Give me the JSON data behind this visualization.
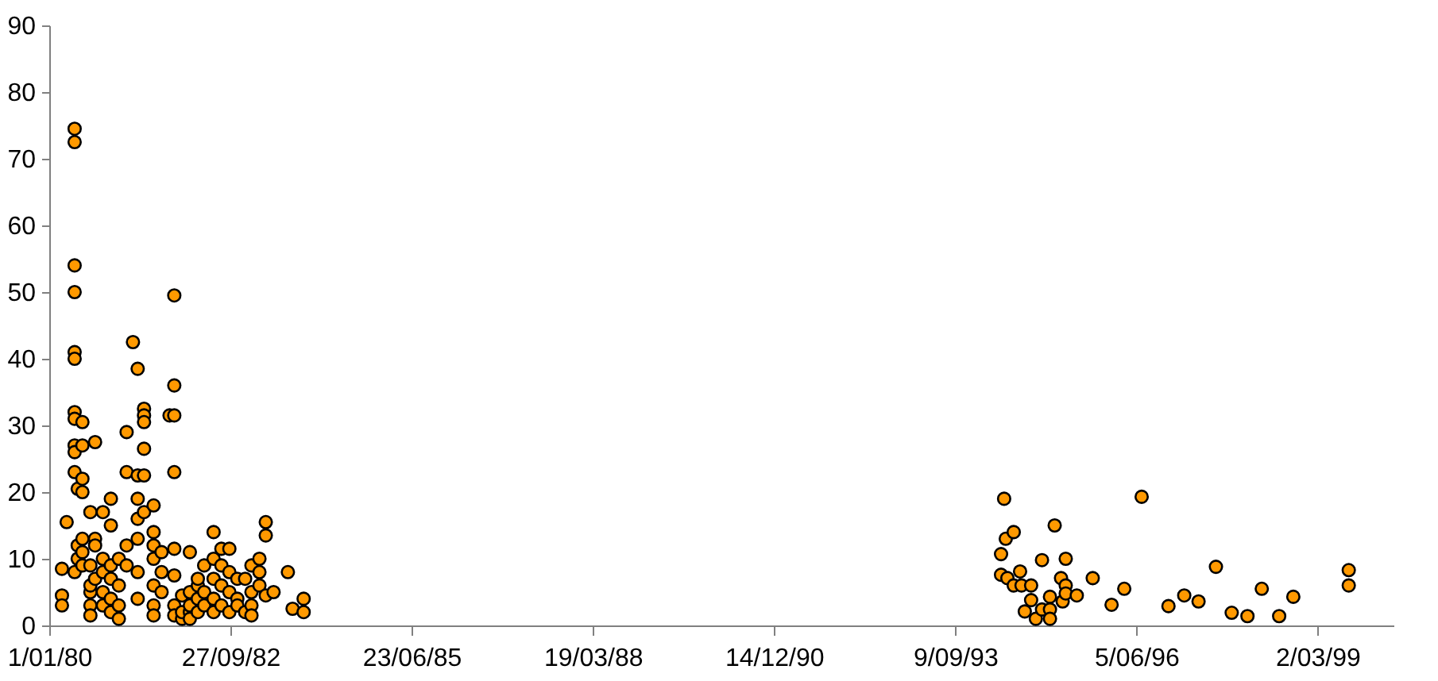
{
  "chart_data": {
    "type": "scatter",
    "marker": "circle",
    "grid": false,
    "xlim": [
      "1980-01-01",
      "2000-04-24"
    ],
    "ylim": [
      0,
      90
    ],
    "xticks": [
      {
        "value": "1980-01-01",
        "label": "1/01/80"
      },
      {
        "value": "1982-09-27",
        "label": "27/09/82"
      },
      {
        "value": "1985-06-23",
        "label": "23/06/85"
      },
      {
        "value": "1988-03-19",
        "label": "19/03/88"
      },
      {
        "value": "1990-12-14",
        "label": "14/12/90"
      },
      {
        "value": "1993-09-09",
        "label": "9/09/93"
      },
      {
        "value": "1996-06-05",
        "label": "5/06/96"
      },
      {
        "value": "1999-03-02",
        "label": "2/03/99"
      }
    ],
    "yticks": [
      0,
      10,
      20,
      30,
      40,
      50,
      60,
      70,
      80,
      90
    ],
    "series": [
      {
        "color": "#ff9900",
        "x": [
          "1980-03-11",
          "1980-03-11",
          "1980-03-11",
          "1980-04-06",
          "1980-05-20",
          "1980-05-20",
          "1980-05-20",
          "1980-05-20",
          "1980-05-20",
          "1980-05-20",
          "1980-05-20",
          "1980-05-20",
          "1980-05-20",
          "1980-05-20",
          "1980-05-20",
          "1980-05-20",
          "1980-06-06",
          "1980-06-06",
          "1980-06-06",
          "1980-07-02",
          "1980-07-02",
          "1980-07-02",
          "1980-07-02",
          "1980-07-02",
          "1980-07-02",
          "1980-07-02",
          "1980-08-15",
          "1980-08-15",
          "1980-08-15",
          "1980-08-15",
          "1980-08-15",
          "1980-08-15",
          "1980-09-10",
          "1980-09-10",
          "1980-09-10",
          "1980-09-10",
          "1980-10-23",
          "1980-10-23",
          "1980-10-23",
          "1980-10-23",
          "1980-10-23",
          "1980-12-06",
          "1980-12-06",
          "1980-12-06",
          "1980-12-06",
          "1980-12-06",
          "1980-12-06",
          "1981-01-19",
          "1981-01-19",
          "1981-01-19",
          "1981-01-19",
          "1981-03-03",
          "1981-03-03",
          "1981-03-03",
          "1981-03-03",
          "1981-04-07",
          "1981-05-03",
          "1981-05-03",
          "1981-05-03",
          "1981-05-03",
          "1981-05-03",
          "1981-05-03",
          "1981-05-03",
          "1981-06-07",
          "1981-06-07",
          "1981-06-07",
          "1981-06-07",
          "1981-06-07",
          "1981-06-07",
          "1981-07-30",
          "1981-07-30",
          "1981-07-30",
          "1981-07-30",
          "1981-07-30",
          "1981-07-30",
          "1981-07-30",
          "1981-09-12",
          "1981-09-12",
          "1981-09-12",
          "1981-10-26",
          "1981-11-21",
          "1981-11-21",
          "1981-11-21",
          "1981-11-21",
          "1981-11-21",
          "1981-11-21",
          "1981-11-21",
          "1981-11-21",
          "1982-01-03",
          "1982-01-03",
          "1982-01-03",
          "1982-02-15",
          "1982-02-15",
          "1982-02-15",
          "1982-02-15",
          "1982-02-15",
          "1982-03-31",
          "1982-03-31",
          "1982-03-31",
          "1982-03-31",
          "1982-05-05",
          "1982-05-05",
          "1982-05-05",
          "1982-06-26",
          "1982-06-26",
          "1982-06-26",
          "1982-06-26",
          "1982-06-26",
          "1982-08-08",
          "1982-08-08",
          "1982-08-08",
          "1982-08-08",
          "1982-09-21",
          "1982-09-21",
          "1982-09-21",
          "1982-09-21",
          "1982-11-04",
          "1982-11-04",
          "1982-11-04",
          "1982-12-17",
          "1982-12-17",
          "1983-01-21",
          "1983-01-21",
          "1983-01-21",
          "1983-01-21",
          "1983-03-06",
          "1983-03-06",
          "1983-03-06",
          "1983-04-10",
          "1983-04-10",
          "1983-04-10",
          "1983-05-23",
          "1983-08-10",
          "1983-09-05",
          "1983-11-05",
          "1983-11-05",
          "1994-06-06",
          "1994-06-15",
          "1994-07-29",
          "1994-05-20",
          "1994-05-20",
          "1994-06-24",
          "1994-07-29",
          "1994-09-02",
          "1994-09-10",
          "1994-11-02",
          "1994-11-02",
          "1994-09-28",
          "1994-11-28",
          "1995-01-01",
          "1995-02-14",
          "1995-02-14",
          "1995-02-14",
          "1995-03-12",
          "1995-01-01",
          "1995-04-16",
          "1995-04-25",
          "1995-05-12",
          "1995-05-12",
          "1995-05-12",
          "1995-07-12",
          "1995-10-08",
          "1996-01-20",
          "1996-03-30",
          "1996-07-04",
          "1996-11-29",
          "1997-02-24",
          "1997-05-14",
          "1997-08-18",
          "1997-11-13",
          "1998-02-08",
          "1998-04-28",
          "1998-08-02",
          "1998-10-19",
          "1999-08-21",
          "1999-08-21"
        ],
        "values": [
          8.5,
          4.5,
          3,
          15.5,
          74.5,
          72.5,
          54,
          50,
          41,
          40,
          32,
          31,
          27,
          26,
          23,
          8,
          10,
          12,
          20.5,
          22,
          20,
          27,
          13,
          11,
          9,
          30.5,
          17,
          9,
          5,
          3,
          1.5,
          6,
          13,
          12,
          7,
          27.5,
          8,
          5,
          3,
          10,
          17,
          2,
          4,
          7,
          9,
          19,
          15,
          1,
          3,
          10,
          6,
          9,
          12,
          23,
          29,
          42.5,
          38.5,
          19,
          16,
          13,
          8,
          4,
          22.5,
          32.5,
          31.5,
          30.5,
          26.5,
          17,
          22.5,
          18,
          14,
          12,
          10,
          6,
          3,
          1.5,
          5,
          8,
          11,
          31.5,
          49.5,
          36,
          31.5,
          23,
          11.5,
          7.5,
          3,
          1.5,
          4.5,
          1,
          2,
          2,
          3,
          5,
          1,
          11,
          2,
          4,
          6,
          7,
          5,
          9,
          3,
          14,
          10,
          7,
          4,
          2,
          11.5,
          9,
          6,
          3,
          5,
          8,
          11.5,
          2,
          7,
          4,
          3,
          7,
          2,
          9,
          5,
          3,
          1.5,
          10,
          8,
          6,
          15.5,
          13.5,
          4.5,
          5,
          8,
          2.5,
          4,
          2,
          19,
          13,
          14,
          10.7,
          7.6,
          7.1,
          6,
          8.1,
          6,
          6,
          3.8,
          2.1,
          1,
          2.4,
          2.4,
          1,
          4.3,
          15,
          9.8,
          7.1,
          3.6,
          10,
          6,
          4.8,
          4.5,
          7.1,
          3.1,
          5.5,
          19.3,
          2.9,
          4.5,
          3.6,
          8.8,
          1.9,
          1.4,
          5.5,
          1.4,
          4.3,
          8.3,
          6
        ]
      }
    ]
  }
}
